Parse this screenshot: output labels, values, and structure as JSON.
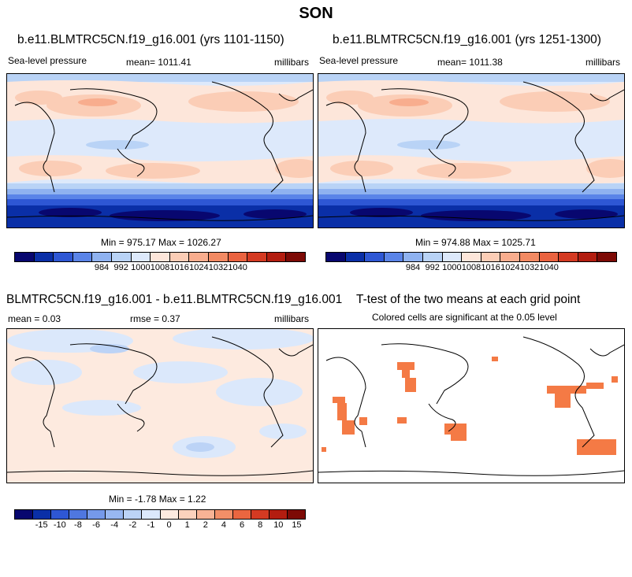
{
  "season": "SON",
  "panel_a": {
    "title": "b.e11.BLMTRC5CN.f19_g16.001 (yrs 1101-1150)",
    "left_label": "Sea-level pressure",
    "mean_label": "mean= 1011.41",
    "units": "millibars",
    "minmax": "Min = 975.17 Max = 1026.27"
  },
  "panel_b": {
    "title": "b.e11.BLMTRC5CN.f19_g16.001 (yrs 1251-1300)",
    "left_label": "Sea-level pressure",
    "mean_label": "mean= 1011.38",
    "units": "millibars",
    "minmax": "Min = 974.88 Max = 1025.71"
  },
  "panel_c": {
    "title": "BLMTRC5CN.f19_g16.001 - b.e11.BLMTRC5CN.f19_g16.001",
    "mean_label": "mean =   0.03",
    "rmse_label": "rmse =   0.37",
    "units": "millibars",
    "minmax": "Min =  -1.78 Max =   1.22"
  },
  "panel_d": {
    "title": "T-test of the two means at each grid point",
    "subtitle": "Colored cells are significant at the 0.05 level",
    "significant_color": "#f47a45"
  },
  "colorbar_abs": {
    "labels": [
      "984",
      "992",
      "1000",
      "1008",
      "1016",
      "1024",
      "1032",
      "1040"
    ],
    "colors": [
      "#08076f",
      "#0a2fa7",
      "#2e57d4",
      "#5a84e8",
      "#8fb2f0",
      "#b9d3f6",
      "#dde9fb",
      "#fde6da",
      "#fbcdb6",
      "#f8ad8e",
      "#f28a63",
      "#ea6340",
      "#d43a22",
      "#b31d10",
      "#7d0a06"
    ]
  },
  "colorbar_diff": {
    "labels": [
      "-15",
      "-10",
      "-8",
      "-6",
      "-4",
      "-2",
      "-1",
      "0",
      "1",
      "2",
      "4",
      "6",
      "8",
      "10",
      "15"
    ],
    "colors": [
      "#08076f",
      "#0a2fa7",
      "#2e57d4",
      "#4f77e0",
      "#7599ea",
      "#98b7f1",
      "#bcd3f6",
      "#dbe8fb",
      "#fdeadf",
      "#fbd2bd",
      "#f8b395",
      "#f28f68",
      "#ea6640",
      "#d43a22",
      "#b31d10",
      "#7d0a06"
    ]
  }
}
